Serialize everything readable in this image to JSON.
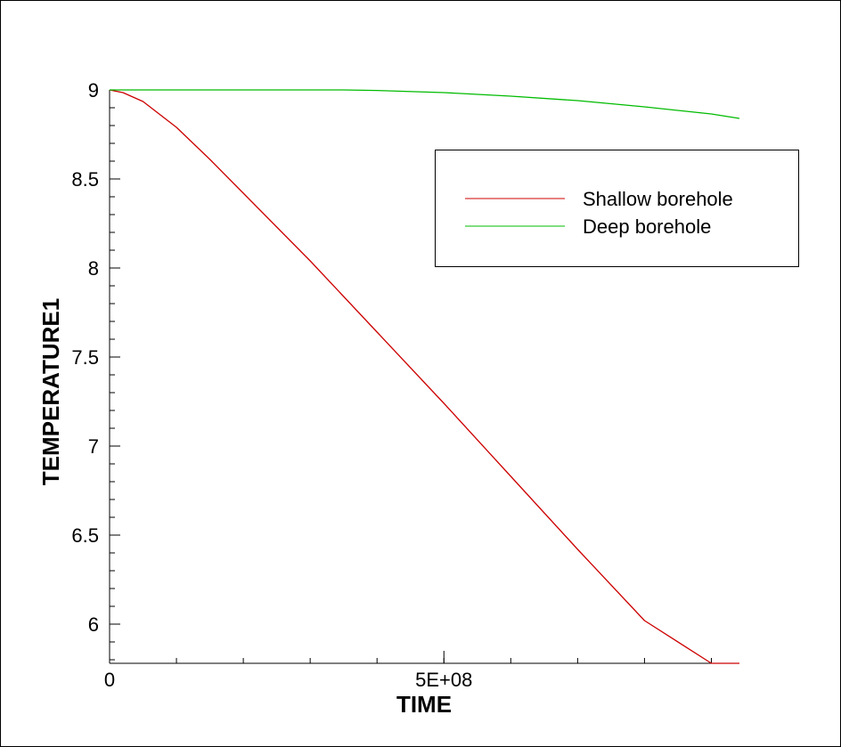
{
  "chart_data": {
    "type": "line",
    "xlabel": "TIME",
    "ylabel": "TEMPERATURE1",
    "xlim": [
      0,
      942000000
    ],
    "ylim": [
      5.78,
      9.0
    ],
    "x_ticks": [
      {
        "value": 0,
        "label": "0"
      },
      {
        "value": 500000000,
        "label": "5E+08"
      }
    ],
    "x_minor_step": 100000000,
    "y_ticks": [
      {
        "value": 6,
        "label": "6"
      },
      {
        "value": 6.5,
        "label": "6.5"
      },
      {
        "value": 7,
        "label": "7"
      },
      {
        "value": 7.5,
        "label": "7.5"
      },
      {
        "value": 8,
        "label": "8"
      },
      {
        "value": 8.5,
        "label": "8.5"
      },
      {
        "value": 9,
        "label": "9"
      }
    ],
    "y_minor_step": 0.1,
    "grid": false,
    "legend_position": "top-right",
    "series": [
      {
        "name": "Shallow borehole",
        "color": "#cc0000",
        "x": [
          0,
          20000000,
          50000000,
          100000000,
          150000000,
          200000000,
          250000000,
          300000000,
          400000000,
          500000000,
          600000000,
          700000000,
          800000000,
          900000000,
          942000000
        ],
        "y": [
          9.0,
          8.985,
          8.935,
          8.79,
          8.61,
          8.42,
          8.23,
          8.04,
          7.64,
          7.24,
          6.83,
          6.42,
          6.02,
          5.62,
          5.78
        ]
      },
      {
        "name": "Deep borehole",
        "color": "#00bb00",
        "x": [
          0,
          100000000,
          200000000,
          300000000,
          350000000,
          400000000,
          500000000,
          600000000,
          700000000,
          800000000,
          900000000,
          942000000
        ],
        "y": [
          9.0,
          9.0,
          9.0,
          9.0,
          9.0,
          8.997,
          8.985,
          8.965,
          8.94,
          8.905,
          8.865,
          8.84
        ]
      }
    ]
  }
}
